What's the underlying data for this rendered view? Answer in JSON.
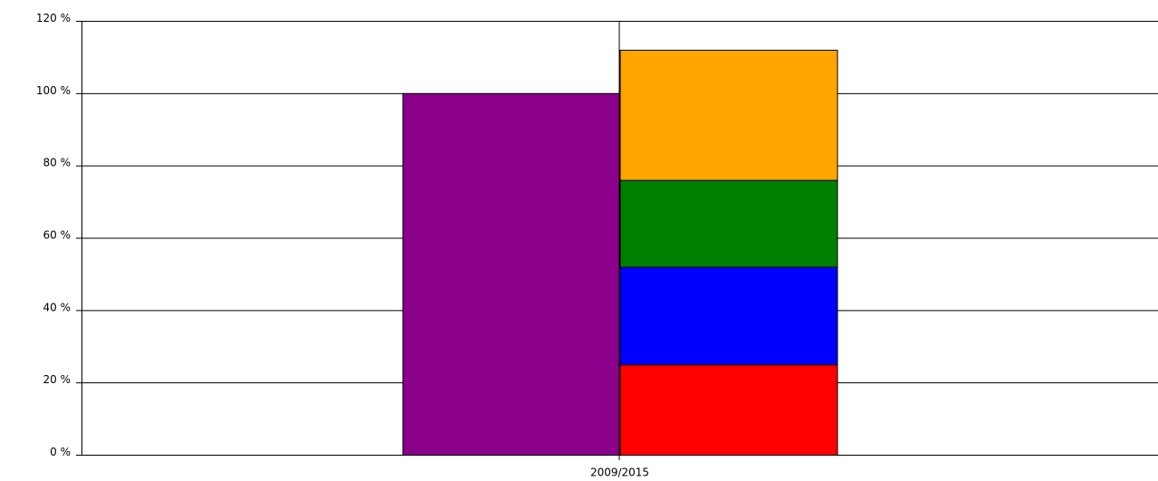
{
  "chart_data": {
    "type": "bar",
    "categories": [
      "2009/2015"
    ],
    "groups": [
      {
        "series": [
          {
            "color": "#8b008b",
            "values": [
              100
            ]
          }
        ]
      },
      {
        "series": [
          {
            "color": "#ff0000",
            "values": [
              25
            ]
          },
          {
            "color": "#0000ff",
            "values": [
              27
            ]
          },
          {
            "color": "#008000",
            "values": [
              24
            ]
          },
          {
            "color": "#ffa500",
            "values": [
              36
            ]
          }
        ]
      }
    ],
    "ylim": [
      0,
      120
    ],
    "yticks": [
      {
        "value": 0,
        "label": "0 %"
      },
      {
        "value": 20,
        "label": "20 %"
      },
      {
        "value": 40,
        "label": "40 %"
      },
      {
        "value": 60,
        "label": "60 %"
      },
      {
        "value": 80,
        "label": "80 %"
      },
      {
        "value": 100,
        "label": "100 %"
      },
      {
        "value": 120,
        "label": "120 %"
      }
    ],
    "grid": true
  }
}
